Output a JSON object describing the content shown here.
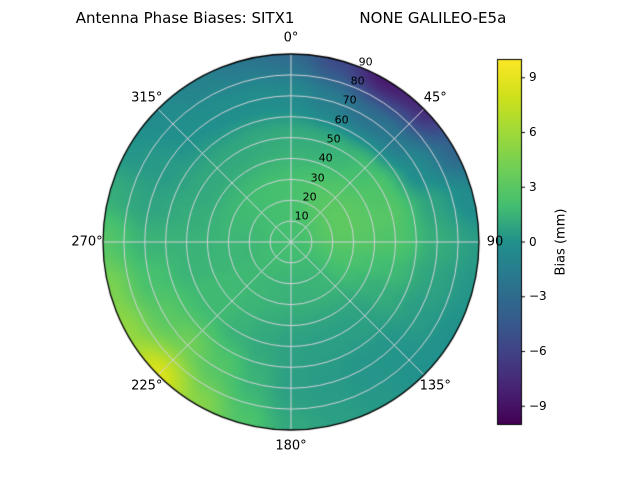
{
  "title": {
    "left": "Antenna Phase Biases: SITX1",
    "right": "NONE GALILEO-E5a"
  },
  "chart_data": {
    "type": "heatmap",
    "projection": "polar",
    "title": "Antenna Phase Biases: SITX1          NONE GALILEO-E5a",
    "colormap": "viridis",
    "vmin": -10,
    "vmax": 10,
    "grid": true,
    "background": "#ffffff",
    "grid_color": "#d2d2da",
    "theta_zero": "N",
    "theta_direction": "clockwise",
    "azimuth_tick_labels": [
      {
        "angle": 0,
        "label": "0°"
      },
      {
        "angle": 45,
        "label": "45°"
      },
      {
        "angle": 90,
        "label": "90"
      },
      {
        "angle": 135,
        "label": "135°"
      },
      {
        "angle": 180,
        "label": "180°"
      },
      {
        "angle": 225,
        "label": "225°"
      },
      {
        "angle": 270,
        "label": "270°"
      },
      {
        "angle": 315,
        "label": "315°"
      }
    ],
    "radial_label_angle": 22.5,
    "radial_max": 90,
    "radial_ticks": [
      {
        "value": 10,
        "label": "10"
      },
      {
        "value": 20,
        "label": "20"
      },
      {
        "value": 30,
        "label": "30"
      },
      {
        "value": 40,
        "label": "40"
      },
      {
        "value": 50,
        "label": "50"
      },
      {
        "value": 60,
        "label": "60"
      },
      {
        "value": 70,
        "label": "70"
      },
      {
        "value": 80,
        "label": "80"
      },
      {
        "value": 90,
        "label": "90"
      }
    ],
    "azimuth_step_deg": 15,
    "zenith_rings": [
      0,
      25,
      50,
      70,
      90
    ],
    "values": [
      [
        2.0,
        2.2,
        1.2,
        -0.5,
        -3.0
      ],
      [
        2.0,
        2.4,
        1.2,
        -1.5,
        -5.5
      ],
      [
        2.0,
        2.8,
        1.5,
        -2.5,
        -8.5
      ],
      [
        2.0,
        3.0,
        2.0,
        -2.0,
        -7.5
      ],
      [
        2.0,
        3.2,
        2.5,
        -0.5,
        -3.5
      ],
      [
        2.0,
        3.2,
        2.8,
        0.8,
        -0.5
      ],
      [
        2.0,
        3.0,
        2.5,
        1.2,
        0.5
      ],
      [
        2.0,
        2.5,
        1.8,
        0.8,
        0.2
      ],
      [
        2.0,
        2.0,
        1.2,
        0.5,
        0.0
      ],
      [
        2.0,
        1.6,
        0.7,
        0.2,
        0.0
      ],
      [
        2.0,
        1.5,
        0.6,
        0.2,
        0.3
      ],
      [
        2.0,
        1.4,
        0.6,
        0.4,
        0.6
      ],
      [
        2.0,
        1.4,
        0.7,
        0.6,
        1.0
      ],
      [
        2.0,
        1.5,
        1.0,
        1.5,
        2.5
      ],
      [
        2.0,
        1.6,
        1.4,
        2.8,
        5.0
      ],
      [
        2.0,
        1.7,
        1.8,
        4.0,
        8.5
      ],
      [
        2.0,
        1.7,
        1.8,
        3.0,
        5.5
      ],
      [
        2.0,
        1.6,
        1.5,
        2.2,
        4.5
      ],
      [
        2.0,
        1.6,
        1.4,
        1.5,
        2.8
      ],
      [
        2.0,
        1.7,
        1.2,
        0.8,
        1.2
      ],
      [
        2.0,
        1.8,
        1.0,
        0.4,
        0.2
      ],
      [
        2.0,
        1.9,
        1.0,
        0.0,
        -0.5
      ],
      [
        2.0,
        2.0,
        1.0,
        -0.2,
        -1.2
      ],
      [
        2.0,
        2.1,
        1.1,
        -0.3,
        -2.0
      ]
    ],
    "colorbar": {
      "label": "Bias (mm)",
      "ticks": [
        {
          "value": 9,
          "label": "9"
        },
        {
          "value": 6,
          "label": "6"
        },
        {
          "value": 3,
          "label": "3"
        },
        {
          "value": 0,
          "label": "0"
        },
        {
          "value": -3,
          "label": "−3"
        },
        {
          "value": -6,
          "label": "−6"
        },
        {
          "value": -9,
          "label": "−9"
        }
      ]
    }
  }
}
